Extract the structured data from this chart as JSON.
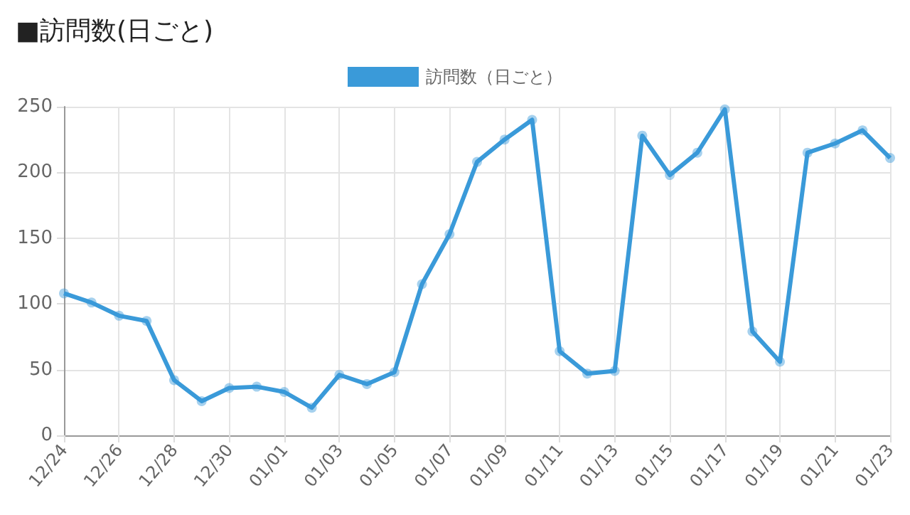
{
  "chart_data": {
    "type": "line",
    "title": "■訪問数(日ごと)",
    "categories": [
      "12/24",
      null,
      "12/26",
      null,
      "12/28",
      null,
      "12/30",
      null,
      "01/01",
      null,
      "01/03",
      null,
      "01/05",
      null,
      "01/07",
      null,
      "01/09",
      null,
      "01/11",
      null,
      "01/13",
      null,
      "01/15",
      null,
      "01/17",
      null,
      "01/19",
      null,
      "01/21",
      null,
      "01/23"
    ],
    "series": [
      {
        "name": "訪問数（日ごと）",
        "color": "#3a9ad9",
        "values": [
          108,
          101,
          91,
          87,
          42,
          26,
          36,
          37,
          33,
          21,
          46,
          39,
          48,
          115,
          153,
          208,
          225,
          240,
          64,
          47,
          49,
          228,
          198,
          215,
          248,
          79,
          56,
          215,
          222,
          232,
          211
        ]
      }
    ],
    "ylim": [
      0,
      250
    ],
    "yticks": [
      0,
      50,
      100,
      150,
      200,
      250
    ],
    "grid": true,
    "legend": "top",
    "marker": "circle",
    "line_style": "solid"
  }
}
